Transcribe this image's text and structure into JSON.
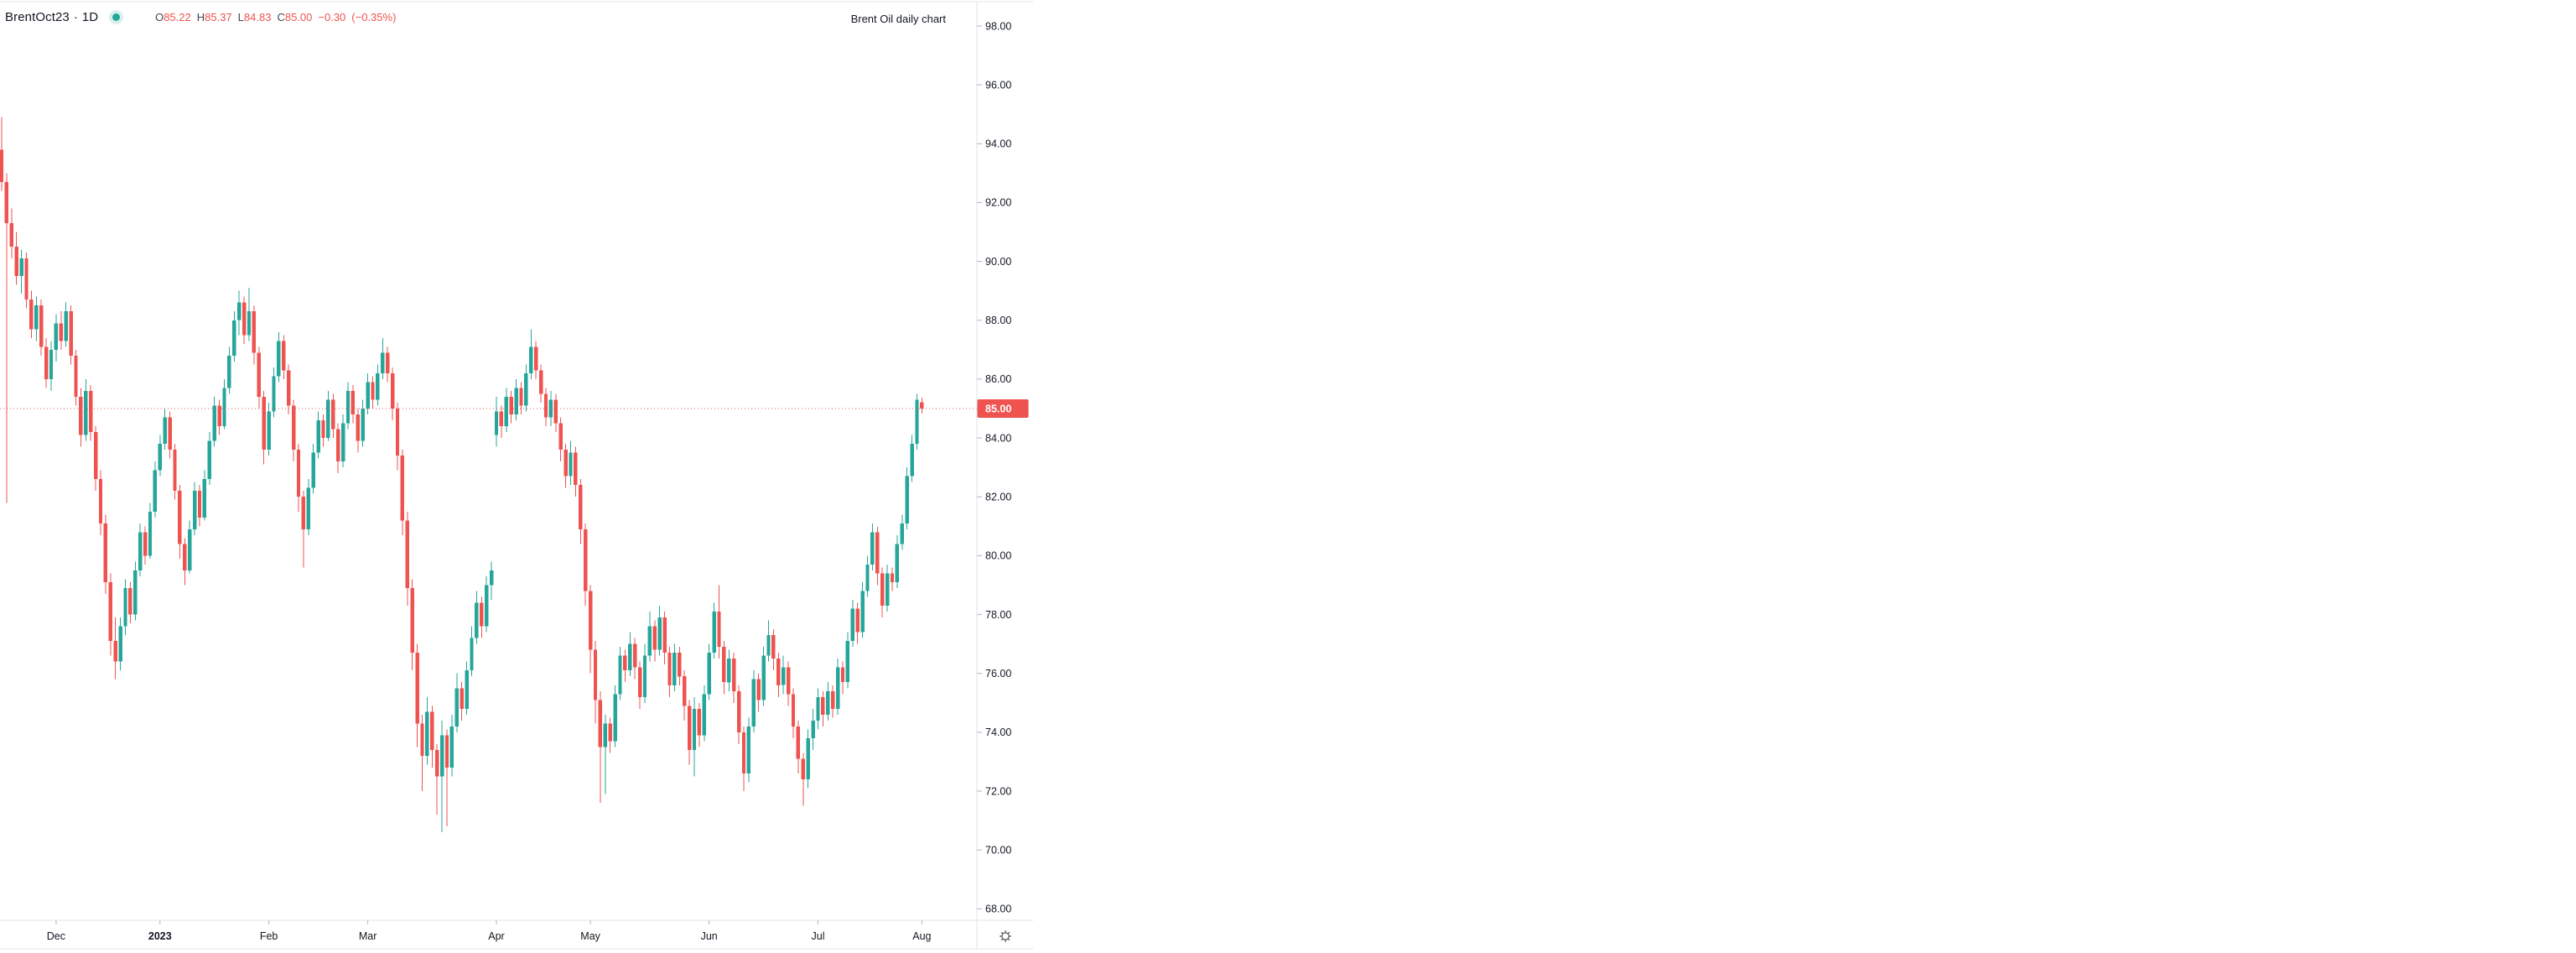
{
  "header": {
    "symbol": "BrentOct23",
    "separator": "·",
    "interval": "1D",
    "market_status": "open",
    "ohlc": {
      "o_label": "O",
      "o_value": "85.22",
      "h_label": "H",
      "h_value": "85.37",
      "l_label": "L",
      "l_value": "84.83",
      "c_label": "C",
      "c_value": "85.00",
      "change": "−0.30",
      "change_pct": "(−0.35%)"
    },
    "chart_title": "Brent Oil daily chart"
  },
  "colors": {
    "up": "#26a69a",
    "down": "#ef5350",
    "text": "#131722",
    "axis_border": "#e0e3eb",
    "tick": "#b2b5be",
    "price_line": "#ef5350",
    "label_bg": "#ef5350",
    "label_text": "#ffffff",
    "icon": "#555861"
  },
  "price_axis": {
    "tick_labels": [
      "98.00",
      "96.00",
      "94.00",
      "92.00",
      "90.00",
      "88.00",
      "86.00",
      "84.00",
      "82.00",
      "80.00",
      "78.00",
      "76.00",
      "74.00",
      "72.00",
      "70.00",
      "68.00"
    ],
    "last_price_label": "85.00"
  },
  "time_axis": {
    "ticks": [
      {
        "label": "Dec",
        "bar": 11,
        "bold": false
      },
      {
        "label": "2023",
        "bar": 32,
        "bold": true
      },
      {
        "label": "Feb",
        "bar": 54,
        "bold": false
      },
      {
        "label": "Mar",
        "bar": 74,
        "bold": false
      },
      {
        "label": "Apr",
        "bar": 100,
        "bold": false
      },
      {
        "label": "May",
        "bar": 119,
        "bold": false
      },
      {
        "label": "Jun",
        "bar": 143,
        "bold": false
      },
      {
        "label": "Jul",
        "bar": 165,
        "bold": false
      },
      {
        "label": "Aug",
        "bar": 186,
        "bold": false
      }
    ],
    "settings_icon": "gear"
  },
  "chart_data": {
    "type": "candlestick",
    "symbol": "BrentOct23",
    "interval": "1D",
    "title": "Brent Oil daily chart",
    "legend_position": "top-left",
    "grid": "off",
    "y_axis": {
      "min": 68,
      "max": 98,
      "step": 2,
      "side": "right",
      "visible_range": [
        67.5,
        98.8
      ]
    },
    "x_axis": {
      "tick_labels": [
        "Dec",
        "2023",
        "Feb",
        "Mar",
        "Apr",
        "May",
        "Jun",
        "Jul",
        "Aug"
      ],
      "span": "Nov 2022 – Aug 1 2023"
    },
    "price_line": {
      "value": 85.0,
      "style": "dotted"
    },
    "last_bar": {
      "open": 85.22,
      "high": 85.37,
      "low": 84.83,
      "close": 85.0,
      "change": -0.3,
      "change_pct": -0.35
    },
    "bars": [
      [
        93.8,
        94.9,
        92.4,
        92.7
      ],
      [
        92.7,
        93.0,
        81.8,
        91.3
      ],
      [
        91.3,
        91.8,
        90.1,
        90.5
      ],
      [
        90.5,
        91.0,
        89.2,
        89.5
      ],
      [
        89.5,
        90.4,
        88.9,
        90.1
      ],
      [
        90.1,
        90.3,
        88.4,
        88.7
      ],
      [
        88.7,
        89.0,
        87.4,
        87.7
      ],
      [
        87.7,
        88.8,
        87.3,
        88.5
      ],
      [
        88.5,
        88.7,
        86.8,
        87.1
      ],
      [
        87.1,
        87.4,
        85.7,
        86.0
      ],
      [
        86.0,
        87.3,
        85.6,
        87.0
      ],
      [
        87.0,
        88.2,
        86.6,
        87.9
      ],
      [
        87.9,
        88.3,
        87.0,
        87.3
      ],
      [
        87.3,
        88.6,
        87.1,
        88.3
      ],
      [
        88.3,
        88.5,
        86.5,
        86.8
      ],
      [
        86.8,
        87.0,
        85.1,
        85.4
      ],
      [
        85.4,
        85.7,
        83.7,
        84.1
      ],
      [
        84.1,
        86.0,
        83.9,
        85.6
      ],
      [
        85.6,
        85.8,
        83.9,
        84.2
      ],
      [
        84.2,
        84.4,
        82.2,
        82.6
      ],
      [
        82.6,
        82.9,
        80.7,
        81.1
      ],
      [
        81.1,
        81.4,
        78.7,
        79.1
      ],
      [
        79.1,
        79.4,
        76.6,
        77.1
      ],
      [
        77.1,
        77.9,
        75.8,
        76.4
      ],
      [
        76.4,
        77.9,
        76.1,
        77.6
      ],
      [
        77.6,
        79.2,
        77.3,
        78.9
      ],
      [
        78.9,
        79.1,
        77.7,
        78.0
      ],
      [
        78.0,
        79.8,
        77.8,
        79.5
      ],
      [
        79.5,
        81.1,
        79.3,
        80.8
      ],
      [
        80.8,
        81.0,
        79.7,
        80.0
      ],
      [
        80.0,
        81.8,
        79.9,
        81.5
      ],
      [
        81.5,
        83.2,
        81.3,
        82.9
      ],
      [
        82.9,
        84.1,
        82.7,
        83.8
      ],
      [
        83.8,
        85.0,
        83.6,
        84.7
      ],
      [
        84.7,
        84.9,
        83.3,
        83.6
      ],
      [
        83.6,
        83.8,
        81.9,
        82.2
      ],
      [
        82.2,
        82.4,
        79.9,
        80.4
      ],
      [
        80.4,
        80.6,
        79.0,
        79.5
      ],
      [
        79.5,
        81.2,
        79.4,
        80.9
      ],
      [
        80.9,
        82.5,
        80.7,
        82.2
      ],
      [
        82.2,
        82.4,
        81.0,
        81.3
      ],
      [
        81.3,
        82.9,
        81.2,
        82.6
      ],
      [
        82.6,
        84.2,
        82.4,
        83.9
      ],
      [
        83.9,
        85.4,
        83.7,
        85.1
      ],
      [
        85.1,
        85.3,
        84.1,
        84.4
      ],
      [
        84.4,
        86.0,
        84.3,
        85.7
      ],
      [
        85.7,
        87.1,
        85.5,
        86.8
      ],
      [
        86.8,
        88.3,
        86.6,
        88.0
      ],
      [
        88.0,
        89.0,
        87.5,
        88.6
      ],
      [
        88.6,
        88.8,
        87.2,
        87.5
      ],
      [
        87.5,
        89.1,
        87.3,
        88.3
      ],
      [
        88.3,
        88.5,
        86.5,
        86.9
      ],
      [
        86.9,
        87.1,
        85.0,
        85.4
      ],
      [
        85.4,
        85.6,
        83.1,
        83.6
      ],
      [
        83.6,
        85.2,
        83.4,
        84.9
      ],
      [
        84.9,
        86.4,
        84.7,
        86.1
      ],
      [
        86.1,
        87.6,
        85.9,
        87.3
      ],
      [
        87.3,
        87.5,
        86.0,
        86.3
      ],
      [
        86.3,
        86.5,
        84.8,
        85.1
      ],
      [
        85.1,
        85.3,
        83.2,
        83.6
      ],
      [
        83.6,
        83.8,
        81.5,
        82.0
      ],
      [
        82.0,
        82.2,
        79.6,
        80.9
      ],
      [
        80.9,
        82.6,
        80.7,
        82.3
      ],
      [
        82.3,
        83.8,
        82.1,
        83.5
      ],
      [
        83.5,
        84.9,
        83.3,
        84.6
      ],
      [
        84.6,
        84.8,
        83.7,
        84.0
      ],
      [
        84.0,
        85.6,
        83.9,
        85.3
      ],
      [
        85.3,
        85.5,
        84.0,
        84.3
      ],
      [
        84.3,
        84.5,
        82.8,
        83.2
      ],
      [
        83.2,
        84.8,
        83.0,
        84.5
      ],
      [
        84.5,
        85.9,
        84.3,
        85.6
      ],
      [
        85.6,
        85.8,
        84.5,
        84.8
      ],
      [
        84.8,
        85.0,
        83.5,
        83.9
      ],
      [
        83.9,
        85.3,
        83.7,
        85.0
      ],
      [
        85.0,
        86.2,
        84.8,
        85.9
      ],
      [
        85.9,
        86.1,
        85.0,
        85.3
      ],
      [
        85.3,
        86.5,
        85.1,
        86.2
      ],
      [
        86.2,
        87.4,
        86.0,
        86.9
      ],
      [
        86.9,
        87.1,
        85.9,
        86.2
      ],
      [
        86.2,
        86.4,
        84.6,
        85.0
      ],
      [
        85.0,
        85.2,
        82.9,
        83.4
      ],
      [
        83.4,
        83.6,
        80.7,
        81.2
      ],
      [
        81.2,
        81.5,
        78.3,
        78.9
      ],
      [
        78.9,
        79.2,
        76.1,
        76.7
      ],
      [
        76.7,
        77.0,
        73.5,
        74.3
      ],
      [
        74.3,
        74.6,
        72.0,
        73.2
      ],
      [
        73.2,
        75.2,
        72.9,
        74.7
      ],
      [
        74.7,
        74.9,
        72.8,
        73.4
      ],
      [
        73.4,
        73.6,
        71.2,
        72.5
      ],
      [
        72.5,
        74.4,
        70.6,
        73.9
      ],
      [
        73.9,
        74.1,
        70.8,
        72.8
      ],
      [
        72.8,
        74.6,
        72.5,
        74.2
      ],
      [
        74.2,
        76.0,
        74.0,
        75.5
      ],
      [
        75.5,
        75.7,
        74.4,
        74.8
      ],
      [
        74.8,
        76.4,
        74.6,
        76.1
      ],
      [
        76.1,
        77.6,
        75.9,
        77.2
      ],
      [
        77.2,
        78.8,
        77.0,
        78.4
      ],
      [
        78.4,
        78.6,
        77.2,
        77.6
      ],
      [
        77.6,
        79.3,
        77.4,
        79.0
      ],
      [
        79.0,
        79.8,
        78.5,
        79.5
      ],
      [
        84.1,
        85.4,
        83.7,
        84.9
      ],
      [
        84.9,
        85.1,
        84.0,
        84.4
      ],
      [
        84.4,
        85.7,
        84.2,
        85.4
      ],
      [
        85.4,
        85.6,
        84.5,
        84.8
      ],
      [
        84.8,
        86.0,
        84.6,
        85.7
      ],
      [
        85.7,
        85.9,
        84.8,
        85.1
      ],
      [
        85.1,
        86.5,
        84.9,
        86.2
      ],
      [
        86.2,
        87.7,
        86.0,
        87.1
      ],
      [
        87.1,
        87.3,
        86.0,
        86.3
      ],
      [
        86.3,
        86.5,
        85.2,
        85.5
      ],
      [
        85.5,
        85.7,
        84.4,
        84.7
      ],
      [
        84.7,
        85.6,
        84.4,
        85.3
      ],
      [
        85.3,
        85.5,
        84.2,
        84.5
      ],
      [
        84.5,
        84.7,
        83.2,
        83.6
      ],
      [
        83.6,
        83.8,
        82.3,
        82.7
      ],
      [
        82.7,
        83.9,
        82.4,
        83.5
      ],
      [
        83.5,
        83.7,
        82.0,
        82.4
      ],
      [
        82.4,
        82.6,
        80.4,
        80.9
      ],
      [
        80.9,
        81.1,
        78.3,
        78.8
      ],
      [
        78.8,
        79.0,
        76.0,
        76.8
      ],
      [
        76.8,
        77.1,
        74.3,
        75.1
      ],
      [
        75.1,
        75.4,
        71.6,
        73.5
      ],
      [
        73.5,
        74.6,
        71.9,
        74.3
      ],
      [
        74.3,
        74.5,
        73.3,
        73.7
      ],
      [
        73.7,
        75.6,
        73.5,
        75.3
      ],
      [
        75.3,
        76.9,
        75.1,
        76.6
      ],
      [
        76.6,
        76.8,
        75.7,
        76.1
      ],
      [
        76.1,
        77.4,
        75.9,
        77.0
      ],
      [
        77.0,
        77.2,
        75.8,
        76.2
      ],
      [
        76.2,
        76.4,
        74.8,
        75.2
      ],
      [
        75.2,
        77.0,
        75.0,
        76.6
      ],
      [
        76.6,
        78.1,
        76.4,
        77.6
      ],
      [
        77.6,
        77.8,
        76.4,
        76.8
      ],
      [
        76.8,
        78.3,
        76.6,
        77.9
      ],
      [
        77.9,
        78.1,
        76.3,
        76.7
      ],
      [
        76.7,
        76.9,
        75.2,
        75.6
      ],
      [
        75.6,
        77.0,
        75.4,
        76.7
      ],
      [
        76.7,
        76.9,
        75.6,
        75.9
      ],
      [
        75.9,
        76.1,
        74.4,
        74.9
      ],
      [
        74.9,
        75.1,
        72.9,
        73.4
      ],
      [
        73.4,
        75.2,
        72.5,
        74.8
      ],
      [
        74.8,
        75.0,
        73.5,
        73.9
      ],
      [
        73.9,
        75.6,
        73.7,
        75.3
      ],
      [
        75.3,
        77.0,
        75.1,
        76.7
      ],
      [
        76.7,
        78.4,
        76.5,
        78.1
      ],
      [
        78.1,
        79.0,
        76.5,
        76.9
      ],
      [
        76.9,
        77.1,
        75.3,
        75.7
      ],
      [
        75.7,
        76.8,
        75.4,
        76.5
      ],
      [
        76.5,
        76.7,
        75.0,
        75.4
      ],
      [
        75.4,
        75.6,
        73.6,
        74.0
      ],
      [
        74.0,
        74.2,
        72.0,
        72.6
      ],
      [
        72.6,
        74.5,
        72.3,
        74.2
      ],
      [
        74.2,
        76.1,
        74.0,
        75.8
      ],
      [
        75.8,
        76.0,
        74.7,
        75.1
      ],
      [
        75.1,
        76.9,
        74.9,
        76.6
      ],
      [
        76.6,
        77.8,
        76.4,
        77.3
      ],
      [
        77.3,
        77.5,
        76.1,
        76.5
      ],
      [
        76.5,
        76.7,
        75.2,
        75.6
      ],
      [
        75.6,
        76.6,
        75.3,
        76.2
      ],
      [
        76.2,
        76.4,
        74.9,
        75.3
      ],
      [
        75.3,
        75.5,
        73.8,
        74.2
      ],
      [
        74.2,
        74.4,
        72.6,
        73.1
      ],
      [
        73.1,
        73.3,
        71.5,
        72.4
      ],
      [
        72.4,
        74.1,
        72.1,
        73.8
      ],
      [
        73.8,
        74.8,
        73.4,
        74.4
      ],
      [
        74.4,
        75.5,
        74.1,
        75.2
      ],
      [
        75.2,
        75.4,
        74.2,
        74.6
      ],
      [
        74.6,
        75.7,
        74.4,
        75.4
      ],
      [
        75.4,
        75.6,
        74.5,
        74.8
      ],
      [
        74.8,
        76.5,
        74.6,
        76.2
      ],
      [
        76.2,
        76.4,
        75.3,
        75.7
      ],
      [
        75.7,
        77.4,
        75.5,
        77.1
      ],
      [
        77.1,
        78.5,
        76.9,
        78.2
      ],
      [
        78.2,
        78.4,
        77.0,
        77.4
      ],
      [
        77.4,
        79.1,
        77.2,
        78.8
      ],
      [
        78.8,
        80.0,
        78.6,
        79.7
      ],
      [
        79.7,
        81.1,
        79.5,
        80.8
      ],
      [
        80.8,
        81.0,
        79.0,
        79.4
      ],
      [
        79.4,
        79.6,
        77.9,
        78.3
      ],
      [
        78.3,
        79.7,
        78.1,
        79.4
      ],
      [
        79.4,
        79.6,
        78.8,
        79.1
      ],
      [
        79.1,
        80.7,
        78.9,
        80.4
      ],
      [
        80.4,
        81.4,
        80.2,
        81.1
      ],
      [
        81.1,
        83.0,
        80.9,
        82.7
      ],
      [
        82.7,
        84.1,
        82.5,
        83.8
      ],
      [
        83.8,
        85.5,
        83.6,
        85.3
      ],
      [
        85.22,
        85.37,
        84.83,
        85.0
      ]
    ]
  }
}
